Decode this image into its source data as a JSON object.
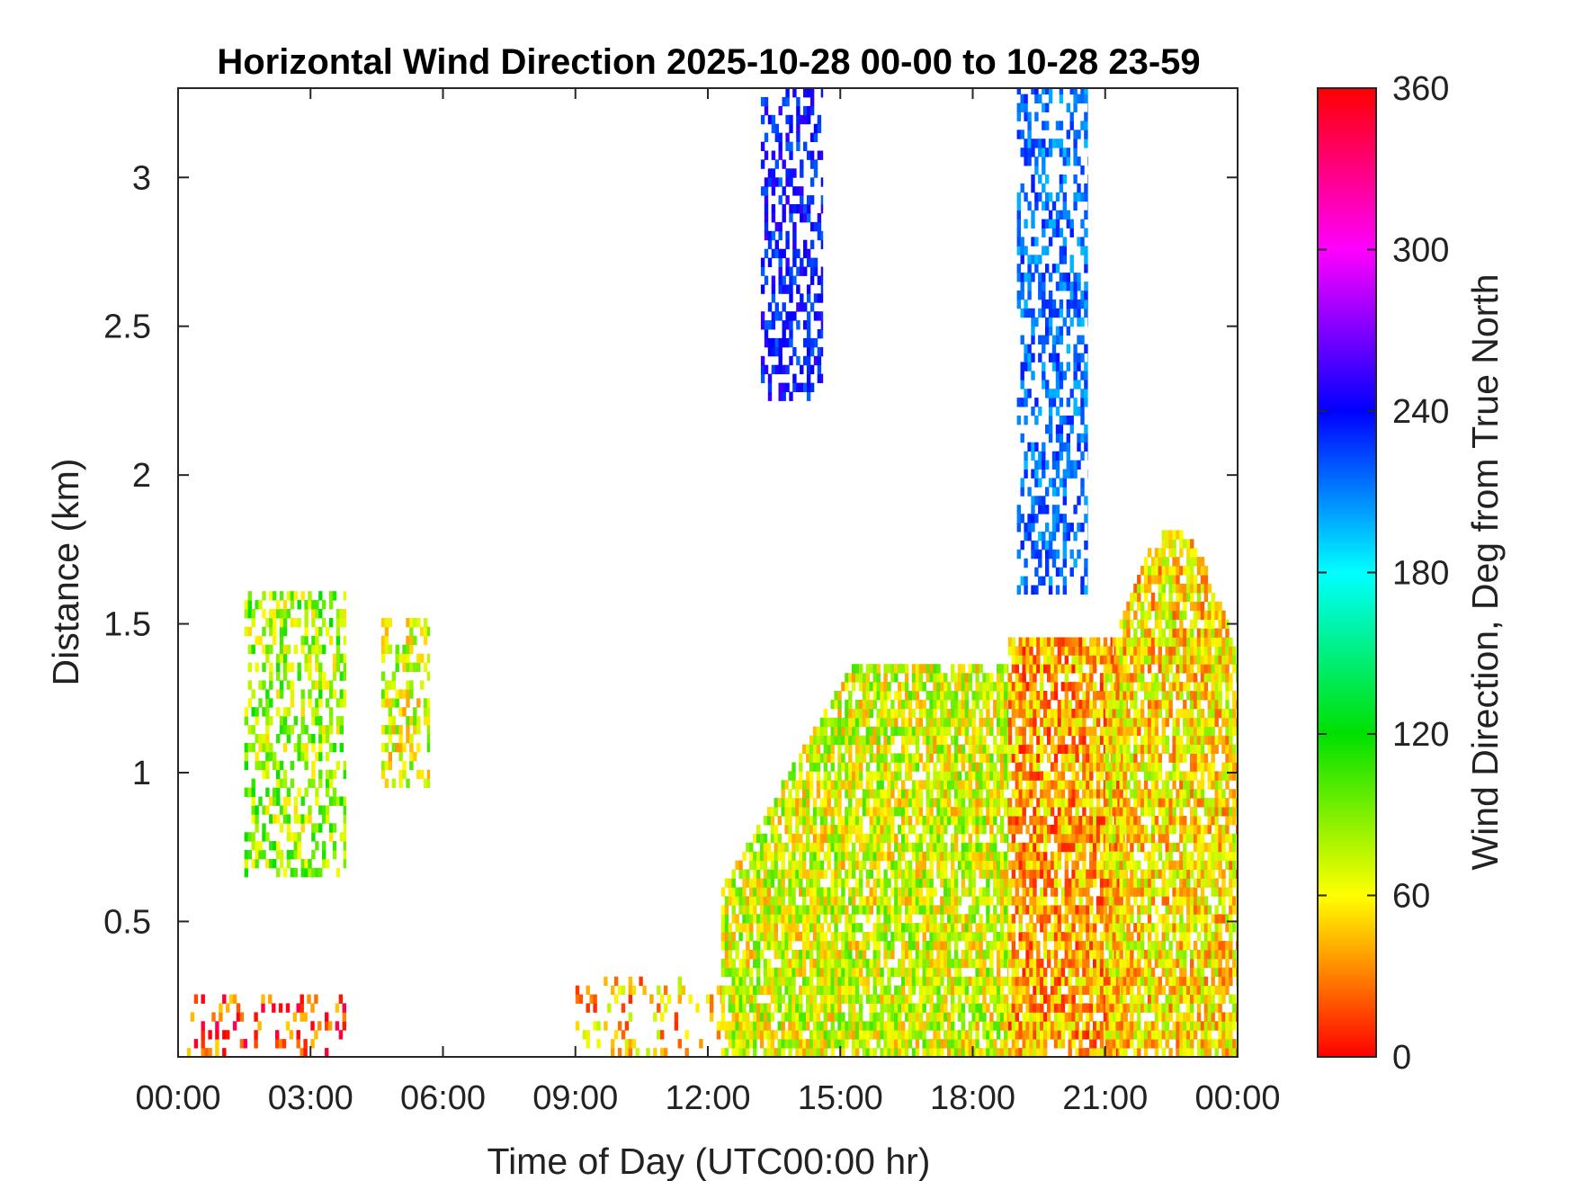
{
  "chart_data": {
    "type": "heatmap",
    "title": "Horizontal Wind Direction 2025-10-28 00-00 to 10-28 23-59",
    "xlabel": "Time of Day (UTC00:00 hr)",
    "ylabel": "Distance (km)",
    "x_unit": "hours",
    "xlim": [
      0,
      24
    ],
    "ylim": [
      0.045,
      3.3
    ],
    "x_ticks": [
      0,
      3,
      6,
      9,
      12,
      15,
      18,
      21,
      24
    ],
    "x_tick_labels": [
      "00:00",
      "03:00",
      "06:00",
      "09:00",
      "12:00",
      "15:00",
      "18:00",
      "21:00",
      "00:00"
    ],
    "y_ticks": [
      0.5,
      1,
      1.5,
      2,
      2.5,
      3
    ],
    "y_tick_labels": [
      "0.5",
      "1",
      "1.5",
      "2",
      "2.5",
      "3"
    ],
    "colorbar": {
      "label": "Wind Direction, Deg from True North",
      "range": [
        0,
        360
      ],
      "ticks": [
        0,
        60,
        120,
        180,
        240,
        300,
        360
      ],
      "tick_labels": [
        "0",
        "60",
        "120",
        "180",
        "240",
        "300",
        "360"
      ],
      "colormap": [
        "#ff0000",
        "#ffff00",
        "#00e000",
        "#00ffff",
        "#0000ff",
        "#ff00ff",
        "#ff0000"
      ]
    },
    "grid": false,
    "regions": [
      {
        "t_start": 13.2,
        "t_end": 14.6,
        "d_bottom": 2.25,
        "d_top": 3.3,
        "direction_deg": 235
      },
      {
        "t_start": 19.0,
        "t_end": 20.6,
        "d_bottom": 1.6,
        "d_top": 3.3,
        "direction_deg": 215
      },
      {
        "t_start": 1.5,
        "t_end": 3.8,
        "d_bottom": 0.65,
        "d_top": 1.6,
        "direction_deg": 85
      },
      {
        "t_start": 4.6,
        "t_end": 5.7,
        "d_bottom": 0.95,
        "d_top": 1.5,
        "direction_deg": 70
      },
      {
        "t_start": 12.3,
        "t_end": 18.8,
        "d_bottom": 0.045,
        "d_top": 1.35,
        "direction_deg": 70
      },
      {
        "t_start": 18.8,
        "t_end": 21.5,
        "d_bottom": 0.045,
        "d_top": 1.45,
        "direction_deg": 40
      },
      {
        "t_start": 21.0,
        "t_end": 24.0,
        "d_bottom": 0.045,
        "d_top": 1.8,
        "direction_deg": 55
      },
      {
        "t_start": 0.2,
        "t_end": 3.8,
        "d_bottom": 0.045,
        "d_top": 0.25,
        "direction_deg": 15
      },
      {
        "t_start": 9.0,
        "t_end": 12.3,
        "d_bottom": 0.045,
        "d_top": 0.3,
        "direction_deg": 45
      }
    ]
  }
}
